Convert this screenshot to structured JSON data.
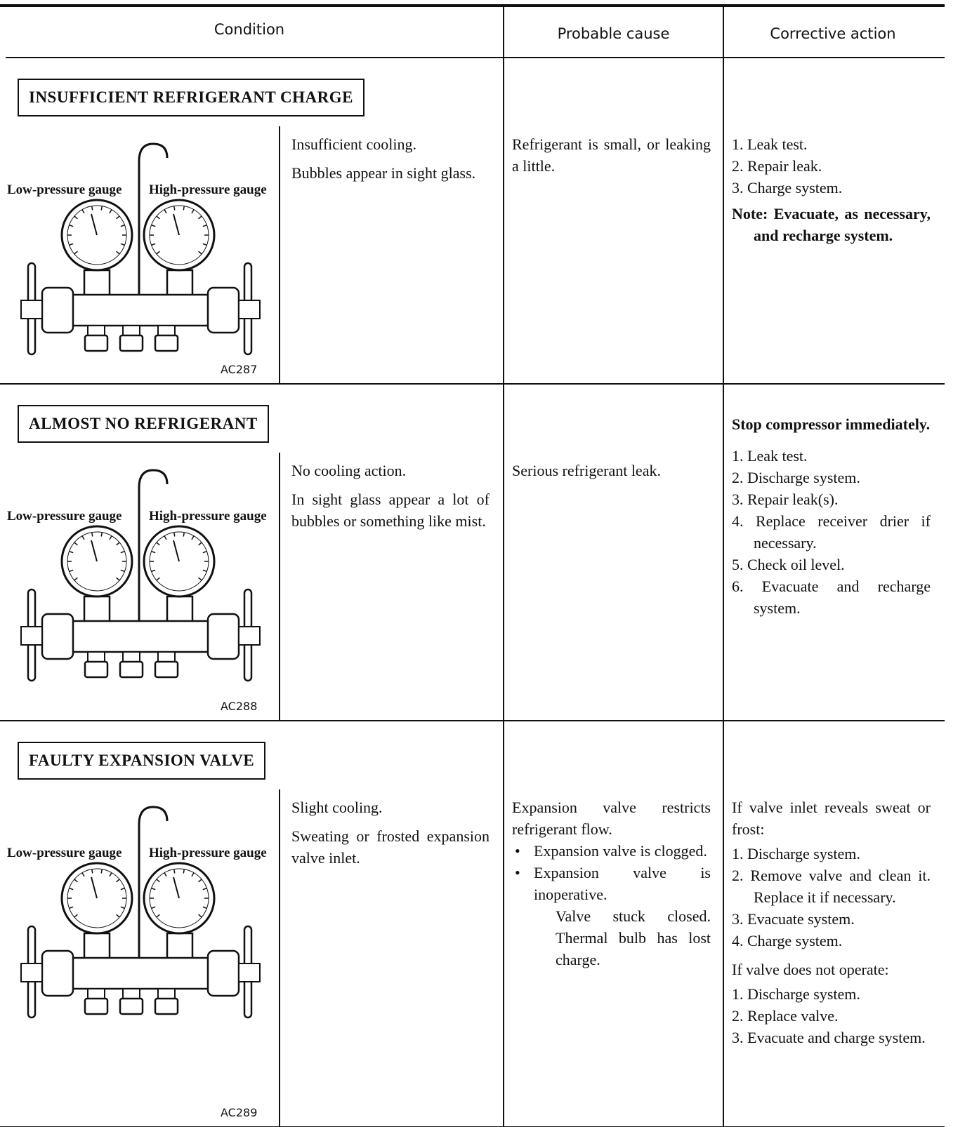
{
  "header": {
    "condition": "Condition",
    "probable_cause": "Probable cause",
    "corrective_action": "Corrective action"
  },
  "sections": [
    {
      "title": "INSUFFICIENT REFRIGERANT CHARGE",
      "figure": {
        "low_label": "Low-pressure gauge",
        "high_label": "High-pressure gauge",
        "id": "AC287"
      },
      "symptoms": [
        "Insufficient cooling.",
        "Bubbles appear in sight glass."
      ],
      "cause": {
        "intro": "Refrigerant is small, or leaking a little."
      },
      "actions": [
        {
          "steps": [
            "1. Leak test.",
            "2. Repair leak.",
            "3. Charge system."
          ],
          "note": "Note: Evacuate, as necessary, and recharge system."
        }
      ]
    },
    {
      "title": "ALMOST NO REFRIGERANT",
      "figure": {
        "low_label": "Low-pressure gauge",
        "high_label": "High-pressure gauge",
        "id": "AC288"
      },
      "symptoms": [
        "No cooling action.",
        "In sight glass appear a lot of bubbles or something like mist."
      ],
      "cause": {
        "intro": "Serious refrigerant leak."
      },
      "actions": [
        {
          "lead": "Stop compressor immediately.",
          "steps": [
            "1. Leak test.",
            "2. Discharge system.",
            "3. Repair leak(s).",
            "4. Replace receiver drier if necessary.",
            "5. Check oil level.",
            "6. Evacuate and recharge system."
          ]
        }
      ]
    },
    {
      "title": "FAULTY EXPANSION VALVE",
      "figure": {
        "low_label": "Low-pressure gauge",
        "high_label": "High-pressure gauge",
        "id": "AC289"
      },
      "symptoms": [
        "Slight cooling.",
        "Sweating or frosted expansion valve inlet."
      ],
      "cause": {
        "intro": "Expansion valve restricts refrigerant flow.",
        "bullets": [
          "Expansion valve is clogged.",
          "Expansion valve is inoperative."
        ],
        "detail": "Valve stuck closed. Thermal bulb has lost charge."
      },
      "actions": [
        {
          "lead": "If valve inlet reveals sweat or frost:",
          "steps": [
            "1. Discharge system.",
            "2. Remove valve and clean it. Replace it if necessary.",
            "3. Evacuate system.",
            "4. Charge system."
          ]
        },
        {
          "lead": "If valve does not operate:",
          "steps": [
            "1. Discharge system.",
            "2. Replace valve.",
            "3. Evacuate and charge system."
          ]
        }
      ]
    }
  ]
}
